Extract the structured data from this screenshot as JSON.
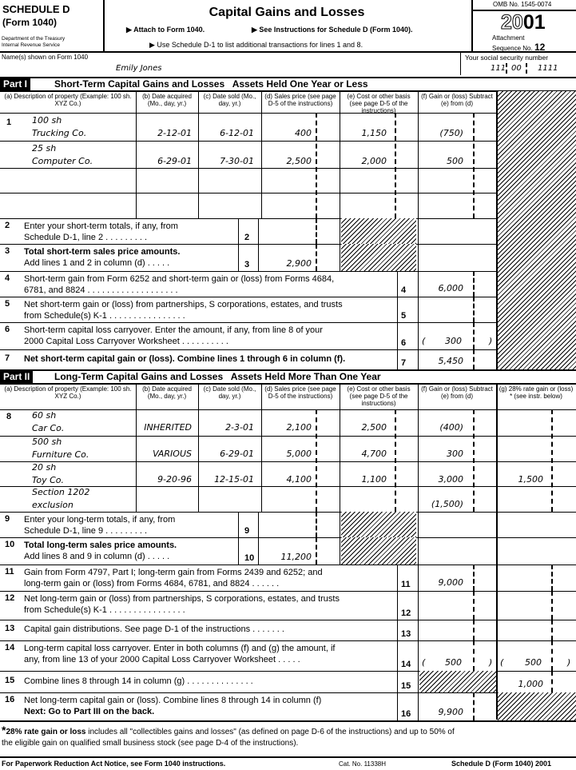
{
  "header": {
    "schedule": "SCHEDULE D",
    "form": "(Form 1040)",
    "dept1": "Department of the Treasury",
    "dept2": "Internal Revenue Service",
    "title": "Capital Gains and Losses",
    "attach": "▶ Attach to Form 1040.",
    "see": "▶ See Instructions for Schedule D (Form 1040).",
    "use": "▶ Use Schedule D-1 to list additional transactions for lines 1 and 8.",
    "omb": "OMB No. 1545-0074",
    "year_a": "20",
    "year_b": "01",
    "attachment": "Attachment",
    "sequence": "Sequence No.",
    "seq_no": "12"
  },
  "name_label": "Name(s) shown on Form 1040",
  "name": "Emily Jones",
  "ssn_label": "Your social security number",
  "ssn": [
    "111",
    "00",
    "1111"
  ],
  "part1": {
    "tag": "Part I",
    "title": "Short-Term Capital Gains and Losses   Assets Held One Year or Less"
  },
  "part2": {
    "tag": "Part II",
    "title": "Long-Term Capital Gains and Losses   Assets Held More Than One Year"
  },
  "cols": {
    "a": "(a) Description of property (Example: 100 sh. XYZ Co.)",
    "b": "(b) Date acquired (Mo., day, yr.)",
    "c": "(c) Date sold (Mo., day, yr.)",
    "d": "(d) Sales price (see page D-5 of the instructions)",
    "e": "(e) Cost or other basis (see page D-5 of the instructions)",
    "f": "(f) Gain or (loss) Subtract (e) from (d)",
    "g": "(g) 28% rate gain or (loss) * (see instr. below)"
  },
  "short_rows": [
    {
      "line": "1",
      "desc1": "100 sh",
      "desc2": "Trucking Co.",
      "acq": "2-12-01",
      "sold": "6-12-01",
      "price": "400",
      "cost": "1,150",
      "gain": "(750)"
    },
    {
      "line": "",
      "desc1": "25 sh",
      "desc2": "Computer Co.",
      "acq": "6-29-01",
      "sold": "7-30-01",
      "price": "2,500",
      "cost": "2,000",
      "gain": "500"
    },
    {
      "line": "",
      "desc1": "",
      "desc2": "",
      "acq": "",
      "sold": "",
      "price": "",
      "cost": "",
      "gain": ""
    },
    {
      "line": "",
      "desc1": "",
      "desc2": "",
      "acq": "",
      "sold": "",
      "price": "",
      "cost": "",
      "gain": ""
    }
  ],
  "long_rows": [
    {
      "line": "8",
      "desc1": "60 sh",
      "desc2": "Car Co.",
      "acq": "INHERITED",
      "sold": "2-3-01",
      "price": "2,100",
      "cost": "2,500",
      "gain": "(400)",
      "g": ""
    },
    {
      "line": "",
      "desc1": "500 sh",
      "desc2": "Furniture Co.",
      "acq": "VARIOUS",
      "sold": "6-29-01",
      "price": "5,000",
      "cost": "4,700",
      "gain": "300",
      "g": ""
    },
    {
      "line": "",
      "desc1": "20 sh",
      "desc2": "Toy Co.",
      "acq": "9-20-96",
      "sold": "12-15-01",
      "price": "4,100",
      "cost": "1,100",
      "gain": "3,000",
      "g": "1,500"
    },
    {
      "line": "",
      "desc1": "Section 1202",
      "desc2": "exclusion",
      "acq": "",
      "sold": "",
      "price": "",
      "cost": "",
      "gain": "(1,500)",
      "g": ""
    }
  ],
  "lines": [
    {
      "n": "2",
      "t1": "Enter your short-term totals, if any, from",
      "t2": "Schedule D-1, line 2 . . . . . . . . .",
      "box": "2",
      "d": ""
    },
    {
      "n": "3",
      "t1": "Total short-term sales price amounts.",
      "t2": "Add lines 1 and 2 in column (d) . . . . .",
      "box": "3",
      "d": "2,900"
    },
    {
      "n": "4",
      "t1": "Short-term gain from Form 6252 and short-term gain or (loss) from Forms 4684,",
      "t2": "6781, and 8824 . . . . . . . . . . . . . . . . . . .",
      "box": "4",
      "f": "6,000"
    },
    {
      "n": "5",
      "t1": "Net short-term gain or (loss) from partnerships, S corporations, estates, and trusts",
      "t2": "from Schedule(s) K-1 . . . . . . . . . . . . . . . .",
      "box": "5",
      "f": ""
    },
    {
      "n": "6",
      "t1": "Short-term capital loss carryover. Enter the amount, if any, from line 8 of your",
      "t2": "2000 Capital Loss Carryover Worksheet . . . . . . . . . .",
      "box": "6",
      "f": "300"
    },
    {
      "n": "7",
      "t1": "Net short-term capital gain or (loss). Combine lines 1 through 6 in column (f).",
      "box": "7",
      "f": "5,450"
    },
    {
      "n": "9",
      "t1": "Enter your long-term totals, if any, from",
      "t2": "Schedule D-1, line 9 . . . . . . . . .",
      "box": "9",
      "d": ""
    },
    {
      "n": "10",
      "t1": "Total long-term sales price amounts.",
      "t2": "Add lines 8 and 9 in column (d) . . . . .",
      "box": "10",
      "d": "11,200"
    },
    {
      "n": "11",
      "t1": "Gain from Form 4797, Part I; long-term gain from Forms 2439 and 6252; and",
      "t2": "long-term gain or (loss) from Forms 4684, 6781, and 8824 . . . . . .",
      "box": "11",
      "f": "9,000"
    },
    {
      "n": "12",
      "t1": "Net long-term gain or (loss) from partnerships, S corporations, estates, and trusts",
      "t2": "from Schedule(s) K-1 . . . . . . . . . . . . . . . .",
      "box": "12",
      "f": ""
    },
    {
      "n": "13",
      "t1": "Capital gain distributions. See page D-1 of the instructions . . . . . . .",
      "box": "13",
      "f": ""
    },
    {
      "n": "14",
      "t1": "Long-term capital loss carryover. Enter in both columns (f) and (g) the amount, if",
      "t2": "any, from line 13 of your 2000 Capital Loss Carryover Worksheet . . . . .",
      "box": "14",
      "f": "500",
      "g": "500"
    },
    {
      "n": "15",
      "t1": "Combine lines 8 through 14 in column (g) . . . . . . . . . . . . . .",
      "box": "15",
      "g": "1,000"
    },
    {
      "n": "16",
      "t1": "Net long-term capital gain or (loss). Combine lines 8 through 14 in column (f)",
      "t2": "Next: Go to Part III on the back.",
      "box": "16",
      "f": "9,900"
    }
  ],
  "footnote": {
    "star": "*",
    "bold": "28% rate gain or loss",
    "text1": " includes all \"collectibles gains and losses\" (as defined on page D-6 of the instructions) and up to 50% of",
    "text2": "the eligible gain on qualified small business stock (see page D-4 of the instructions)."
  },
  "footer": {
    "left": "For Paperwork Reduction Act Notice, see Form 1040 instructions.",
    "cat": "Cat. No. 11338H",
    "right": "Schedule D (Form 1040) 2001"
  }
}
